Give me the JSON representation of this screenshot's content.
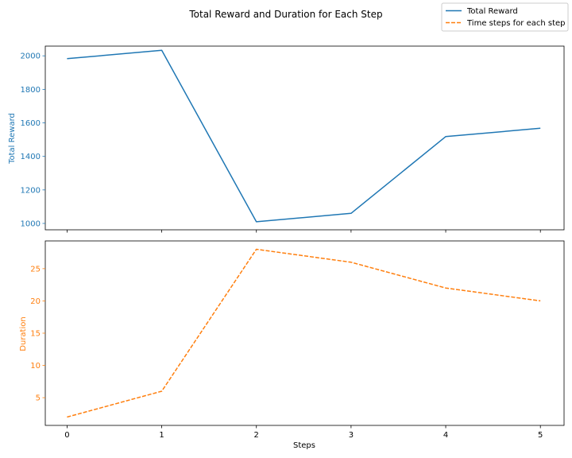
{
  "chart_data": {
    "type": "line",
    "title": "Total Reward and Duration for Each Step",
    "xlabel": "Steps",
    "x": [
      0,
      1,
      2,
      3,
      4,
      5
    ],
    "xticks": [
      0,
      1,
      2,
      3,
      4,
      5
    ],
    "xlim": [
      -0.23,
      5.25
    ],
    "subplots": [
      {
        "ylabel": "Total Reward",
        "ylim": [
          962,
          2058
        ],
        "yticks": [
          1000,
          1200,
          1400,
          1600,
          1800,
          2000
        ],
        "series": [
          {
            "name": "Total Reward",
            "values": [
              1983,
              2033,
              1010,
              1060,
              1518,
              1568
            ],
            "color": "#1f77b4",
            "style": "solid"
          }
        ]
      },
      {
        "ylabel": "Duration",
        "ylim": [
          0.7,
          29.3
        ],
        "yticks": [
          5,
          10,
          15,
          20,
          25
        ],
        "series": [
          {
            "name": "Time steps for each step",
            "values": [
              2,
              6,
              28,
              26,
              22,
              20
            ],
            "color": "#ff7f0e",
            "style": "dashed"
          }
        ]
      }
    ],
    "legend": {
      "placement": "top-right"
    },
    "grid": false
  }
}
